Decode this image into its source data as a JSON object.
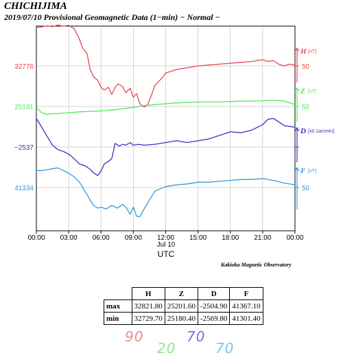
{
  "title": {
    "station": "CHICHIJIMA",
    "subtitle": "2019/07/10  Provisional Geomagnetic Data (1−min)  − Normal −"
  },
  "credit": "Kakioka Magnetic Observatory",
  "chart_data": {
    "type": "line",
    "xlabel": "UTC",
    "date_label": "Jul 10",
    "x_ticks": [
      "00:00",
      "03:00",
      "06:00",
      "09:00",
      "12:00",
      "15:00",
      "18:00",
      "21:00",
      "00:00"
    ],
    "x_range_hours": [
      0,
      24
    ],
    "grid": true,
    "series": [
      {
        "name": "H",
        "unit": "[nT]",
        "color": "#e8474f",
        "left_label": "32776",
        "right_tick": "50",
        "ref_value": 32776,
        "span": 90,
        "x": [
          0,
          0.5,
          1.0,
          1.5,
          2.0,
          2.5,
          3.0,
          3.5,
          4.0,
          4.3,
          4.7,
          5.0,
          5.3,
          5.7,
          6.0,
          6.3,
          6.7,
          7.0,
          7.3,
          7.6,
          8.0,
          8.3,
          8.7,
          9.0,
          9.3,
          9.6,
          10.0,
          10.3,
          10.7,
          11.0,
          11.3,
          11.7,
          12.0,
          12.5,
          13.0,
          14.0,
          15.0,
          16.0,
          17.0,
          18.0,
          19.0,
          20.0,
          20.5,
          21.0,
          21.5,
          22.0,
          22.5,
          23.0,
          23.5,
          24.0
        ],
        "y": [
          32819,
          32819.8,
          32821,
          32820,
          32821.8,
          32820.5,
          32821.5,
          32818,
          32806,
          32796,
          32790,
          32772,
          32764,
          32760,
          32752,
          32749,
          32752,
          32744,
          32752,
          32756,
          32753,
          32746,
          32751,
          32741,
          32745,
          32734,
          32730,
          32732,
          32744,
          32754,
          32758,
          32763,
          32768,
          32770,
          32772,
          32774,
          32776,
          32777,
          32778,
          32779,
          32780,
          32781,
          32782,
          32783,
          32781,
          32782,
          32778,
          32776,
          32778,
          32777
        ]
      },
      {
        "name": "Z",
        "unit": "[nT]",
        "color": "#52e85a",
        "left_label": "25191",
        "right_tick": "50",
        "ref_value": 25191,
        "span": 20,
        "x": [
          0,
          0.5,
          1.0,
          1.5,
          2.0,
          3.0,
          4.0,
          5.0,
          6.0,
          7.0,
          8.0,
          9.0,
          10.0,
          11.0,
          12.0,
          13.0,
          14.0,
          15.0,
          16.0,
          17.0,
          18.0,
          19.0,
          20.0,
          21.0,
          22.0,
          23.0,
          23.5,
          24.0
        ],
        "y": [
          25190,
          25184,
          25182,
          25183,
          25183,
          25184,
          25185,
          25185.5,
          25186,
          25187,
          25188.5,
          25190,
          25192,
          25193,
          25194,
          25195,
          25195.5,
          25196,
          25196,
          25196,
          25196.5,
          25197,
          25197,
          25197.5,
          25198,
          25197,
          25195,
          25193
        ]
      },
      {
        "name": "D",
        "unit": "[x0.1arcmin]",
        "color": "#3b2fc4",
        "left_label": "−2537",
        "right_tick": "",
        "ref_value": -2537,
        "span": 70,
        "x": [
          0,
          0.5,
          1.0,
          1.5,
          2.0,
          2.5,
          3.0,
          3.5,
          4.0,
          4.5,
          5.0,
          5.3,
          5.7,
          6.0,
          6.3,
          6.7,
          7.0,
          7.3,
          7.7,
          8.0,
          8.3,
          8.7,
          9.0,
          9.5,
          10.0,
          11.0,
          12.0,
          13.0,
          14.0,
          15.0,
          16.0,
          17.0,
          18.0,
          19.0,
          20.0,
          21.0,
          21.5,
          22.0,
          22.5,
          23.0,
          24.0
        ],
        "y": [
          -2505,
          -2515,
          -2525,
          -2535,
          -2540,
          -2542,
          -2545,
          -2550,
          -2556,
          -2558,
          -2562,
          -2566,
          -2569,
          -2564,
          -2556,
          -2553,
          -2550,
          -2533,
          -2536,
          -2534,
          -2535,
          -2532,
          -2535,
          -2534,
          -2535,
          -2534,
          -2532,
          -2530,
          -2532,
          -2530,
          -2528,
          -2524,
          -2520,
          -2521,
          -2518,
          -2512,
          -2506,
          -2505,
          -2509,
          -2513,
          -2515
        ]
      },
      {
        "name": "F",
        "unit": "[nT]",
        "color": "#2f9ae0",
        "left_label": "41334",
        "right_tick": "50",
        "ref_value": 41334,
        "span": 70,
        "x": [
          0,
          0.5,
          1.0,
          1.5,
          2.0,
          2.5,
          3.0,
          3.5,
          4.0,
          4.5,
          5.0,
          5.3,
          5.7,
          6.0,
          6.5,
          7.0,
          7.5,
          8.0,
          8.3,
          8.7,
          9.0,
          9.3,
          9.6,
          10.0,
          10.5,
          11.0,
          12.0,
          13.0,
          14.0,
          15.0,
          16.0,
          17.0,
          18.0,
          19.0,
          20.0,
          21.0,
          22.0,
          23.0,
          24.0
        ],
        "y": [
          41353,
          41353,
          41354,
          41355,
          41356,
          41353,
          41350,
          41346,
          41340,
          41330,
          41320,
          41314,
          41311,
          41312,
          41310,
          41314,
          41311,
          41315,
          41312,
          41304,
          41312,
          41302,
          41301.4,
          41310,
          41320,
          41330,
          41335,
          41337,
          41338,
          41340,
          41340,
          41341,
          41342,
          41343,
          41343,
          41344,
          41342,
          41339,
          41337
        ]
      }
    ]
  },
  "table": {
    "headers": [
      "H",
      "Z",
      "D",
      "F"
    ],
    "rows": [
      {
        "label": "max",
        "values": [
          "32821.80",
          "25201.60",
          "-2504.90",
          "41367.10"
        ]
      },
      {
        "label": "min",
        "values": [
          "32729.70",
          "25180.40",
          "-2569.80",
          "41301.40"
        ]
      }
    ]
  },
  "scales": [
    {
      "text": "90",
      "color": "#f08a8f"
    },
    {
      "text": "20",
      "color": "#8ee88f"
    },
    {
      "text": "70",
      "color": "#6f74e0"
    },
    {
      "text": "70",
      "color": "#7cc4ef"
    }
  ]
}
